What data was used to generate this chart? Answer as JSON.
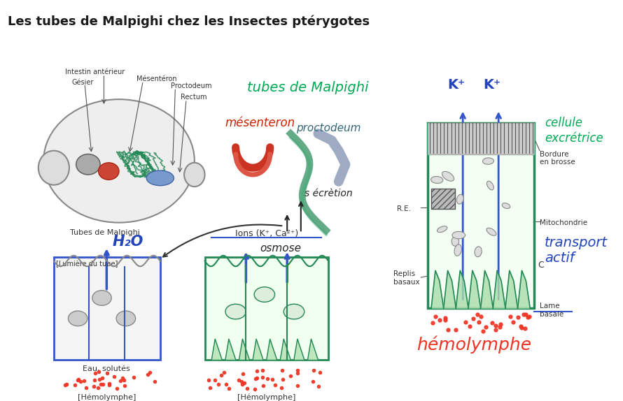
{
  "title": "Les tubes de Malpighi chez les Insectes ptérygotes",
  "title_fontsize": 13,
  "title_fontweight": "bold",
  "bg_color": "#ffffff",
  "fig_width": 8.9,
  "fig_height": 5.74,
  "labels": {
    "intestin": "Intestin antérieur",
    "gesier": "Gésier",
    "mesenteron": "Mésentéron",
    "proctodeum_label": "Proctodeum",
    "rectum": "Rectum",
    "tubes_malpighi": "Tubes de Malpighi",
    "tubes_de_malpighi_cursive": "tubes de Malpighi",
    "mesenteron_cursive": "mésenteron",
    "proctodeum_cursive": "proctodeum",
    "secretion": "s écrètion",
    "osmose": "osmose",
    "h2o": "H₂O",
    "lumiere": "[Lumière du tube]",
    "ions": "Ions (K⁺, Ca²⁺)",
    "eau_solutes": "Eau, solutés",
    "hemolymphe1": "[Hémolymphe]",
    "hemolymphe2": "[Hémolymphe]",
    "k_plus1": "K⁺",
    "k_plus2": "K⁺",
    "cellule": "cellule",
    "excretrice": "excrétrice",
    "bordure": "Bordure\nen brosse",
    "mitochondrie": "Mitochondrie",
    "transport": "transport\nactif",
    "re": "R.E.",
    "c": "C",
    "replis": "Replis\nbasaux",
    "lame": "Lame\nbasale",
    "hemolymphe_big": "hémolymphe"
  },
  "colors": {
    "title": "#1a1a1a",
    "green_cursive": "#00aa55",
    "red_cursive": "#cc2200",
    "blue_arrow": "#3355cc",
    "blue_text": "#2244bb",
    "red_dots": "#ee3322",
    "red_hemolymphe": "#ee3322",
    "body_outline": "#888888",
    "body_fill": "#dddddd",
    "green_tubes": "#228855",
    "blue_body": "#6699cc",
    "gray_brush": "#999999",
    "cell_outline": "#336633",
    "cell_fill": "#c8e6c8",
    "basal_fill": "#b8ddb8",
    "black": "#111111",
    "dark_gray": "#444444",
    "medium_gray": "#777777",
    "light_gray": "#cccccc"
  }
}
